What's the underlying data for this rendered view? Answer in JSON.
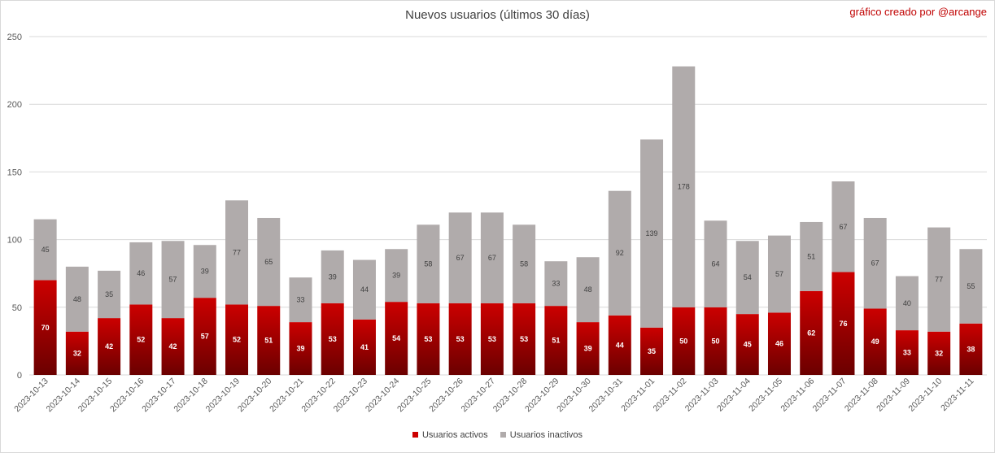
{
  "credit": "gráfico creado por @arcange",
  "colors": {
    "active_top": "#cc0000",
    "active_bottom": "#6b0000",
    "inactive": "#b0abab",
    "grid": "#d9d9d9",
    "text": "#595959"
  },
  "chart_data": {
    "type": "bar",
    "stacked": true,
    "title": "Nuevos usuarios (últimos 30 días)",
    "xlabel": "",
    "ylabel": "",
    "ylim": [
      0,
      250
    ],
    "yticks": [
      0,
      50,
      100,
      150,
      200,
      250
    ],
    "grid": true,
    "legend_position": "bottom",
    "categories": [
      "2023-10-13",
      "2023-10-14",
      "2023-10-15",
      "2023-10-16",
      "2023-10-17",
      "2023-10-18",
      "2023-10-19",
      "2023-10-20",
      "2023-10-21",
      "2023-10-22",
      "2023-10-23",
      "2023-10-24",
      "2023-10-25",
      "2023-10-26",
      "2023-10-27",
      "2023-10-28",
      "2023-10-29",
      "2023-10-30",
      "2023-10-31",
      "2023-11-01",
      "2023-11-02",
      "2023-11-03",
      "2023-11-04",
      "2023-11-05",
      "2023-11-06",
      "2023-11-07",
      "2023-11-08",
      "2023-11-09",
      "2023-11-10",
      "2023-11-11"
    ],
    "series": [
      {
        "name": "Usuarios activos",
        "values": [
          70,
          32,
          42,
          52,
          42,
          57,
          52,
          51,
          39,
          53,
          41,
          54,
          53,
          53,
          53,
          53,
          51,
          39,
          44,
          35,
          50,
          50,
          45,
          46,
          62,
          76,
          49,
          33,
          32,
          38
        ]
      },
      {
        "name": "Usuarios inactivos",
        "values": [
          45,
          48,
          35,
          46,
          57,
          39,
          77,
          65,
          33,
          39,
          44,
          39,
          58,
          67,
          67,
          58,
          33,
          48,
          92,
          139,
          178,
          64,
          54,
          57,
          51,
          67,
          67,
          40,
          77,
          55
        ]
      }
    ]
  }
}
